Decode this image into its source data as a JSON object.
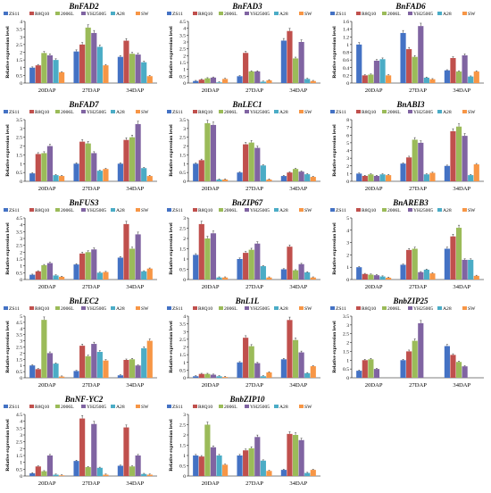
{
  "legend_entries": [
    "ZS11",
    "R8Q10",
    "2006L",
    "YH25005",
    "A28",
    "SW"
  ],
  "series_colors": [
    "#4472C4",
    "#C0504D",
    "#9BBB59",
    "#8064A2",
    "#4BACC6",
    "#F79646"
  ],
  "ylabel": "Relative expression level",
  "categories": [
    "20DAP",
    "27DAP",
    "34DAP"
  ],
  "chart_data": [
    {
      "type": "bar",
      "title": "BnFAD2",
      "categories": [
        "20DAP",
        "27DAP",
        "34DAP"
      ],
      "ylim": [
        0,
        4
      ],
      "yticks": [
        "0",
        "0.5",
        "1",
        "1.5",
        "2",
        "2.5",
        "3",
        "3.5",
        "4"
      ],
      "ylabel": "Relative expression level",
      "series": [
        {
          "name": "ZS11",
          "values": [
            1.0,
            2.05,
            1.7
          ]
        },
        {
          "name": "R8Q10",
          "values": [
            1.15,
            2.5,
            2.75
          ]
        },
        {
          "name": "2006L",
          "values": [
            1.95,
            3.6,
            1.9
          ]
        },
        {
          "name": "YH25005",
          "values": [
            1.8,
            3.25,
            1.85
          ]
        },
        {
          "name": "A28",
          "values": [
            1.5,
            2.35,
            1.35
          ]
        },
        {
          "name": "SW",
          "values": [
            0.7,
            1.15,
            0.45
          ]
        }
      ]
    },
    {
      "type": "bar",
      "title": "BnFAD3",
      "categories": [
        "20DAP",
        "27DAP",
        "34DAP"
      ],
      "ylim": [
        0,
        4.5
      ],
      "yticks": [
        "0",
        "0.5",
        "1",
        "1.5",
        "2",
        "2.5",
        "3",
        "3.5",
        "4",
        "4.5"
      ],
      "ylabel": "Relative expression level",
      "series": [
        {
          "name": "ZS11",
          "values": [
            0.15,
            0.5,
            3.1
          ]
        },
        {
          "name": "R8Q10",
          "values": [
            0.25,
            2.2,
            3.8
          ]
        },
        {
          "name": "2006L",
          "values": [
            0.35,
            0.85,
            1.8
          ]
        },
        {
          "name": "YH25005",
          "values": [
            0.4,
            0.85,
            3.0
          ]
        },
        {
          "name": "A28",
          "values": [
            0.05,
            0.1,
            0.3
          ]
        },
        {
          "name": "SW",
          "values": [
            0.3,
            0.2,
            0.15
          ]
        }
      ]
    },
    {
      "type": "bar",
      "title": "BnFAD6",
      "categories": [
        "20DAP",
        "27DAP",
        "34DAP"
      ],
      "ylim": [
        0,
        1.6
      ],
      "yticks": [
        "0",
        "0.2",
        "0.4",
        "0.6",
        "0.8",
        "1",
        "1.2",
        "1.4",
        "1.6"
      ],
      "ylabel": "Relative expression level",
      "series": [
        {
          "name": "ZS11",
          "values": [
            1.0,
            1.3,
            0.33
          ]
        },
        {
          "name": "R8Q10",
          "values": [
            0.2,
            0.88,
            0.65
          ]
        },
        {
          "name": "2006L",
          "values": [
            0.22,
            0.68,
            0.3
          ]
        },
        {
          "name": "YH25005",
          "values": [
            0.58,
            1.48,
            0.72
          ]
        },
        {
          "name": "A28",
          "values": [
            0.62,
            0.14,
            0.17
          ]
        },
        {
          "name": "SW",
          "values": [
            0.2,
            0.1,
            0.3
          ]
        }
      ]
    },
    {
      "type": "bar",
      "title": "BnFAD7",
      "categories": [
        "20DAP",
        "27DAP",
        "34DAP"
      ],
      "ylim": [
        0,
        3.5
      ],
      "yticks": [
        "0",
        "0.5",
        "1",
        "1.5",
        "2",
        "2.5",
        "3",
        "3.5"
      ],
      "ylabel": "Relative expression level",
      "series": [
        {
          "name": "ZS11",
          "values": [
            0.45,
            1.0,
            1.0
          ]
        },
        {
          "name": "R8Q10",
          "values": [
            1.55,
            2.25,
            2.35
          ]
        },
        {
          "name": "2006L",
          "values": [
            1.6,
            2.15,
            2.5
          ]
        },
        {
          "name": "YH25005",
          "values": [
            2.0,
            1.6,
            3.25
          ]
        },
        {
          "name": "A28",
          "values": [
            0.35,
            0.6,
            0.75
          ]
        },
        {
          "name": "SW",
          "values": [
            0.3,
            0.7,
            0.3
          ]
        }
      ]
    },
    {
      "type": "bar",
      "title": "BnLEC1",
      "categories": [
        "20DAP",
        "27DAP",
        "34DAP"
      ],
      "ylim": [
        0,
        3.5
      ],
      "yticks": [
        "0",
        "0.5",
        "1",
        "1.5",
        "2",
        "2.5",
        "3",
        "3.5"
      ],
      "ylabel": "Relative expression level",
      "series": [
        {
          "name": "ZS11",
          "values": [
            1.0,
            0.5,
            0.3
          ]
        },
        {
          "name": "R8Q10",
          "values": [
            1.2,
            2.1,
            0.5
          ]
        },
        {
          "name": "2006L",
          "values": [
            3.3,
            2.2,
            0.7
          ]
        },
        {
          "name": "YH25005",
          "values": [
            3.2,
            1.9,
            0.55
          ]
        },
        {
          "name": "A28",
          "values": [
            0.1,
            0.9,
            0.4
          ]
        },
        {
          "name": "SW",
          "values": [
            0.1,
            0.1,
            0.25
          ]
        }
      ]
    },
    {
      "type": "bar",
      "title": "BnABI3",
      "categories": [
        "20DAP",
        "27DAP",
        "34DAP"
      ],
      "ylim": [
        0,
        8
      ],
      "yticks": [
        "0",
        "1",
        "2",
        "3",
        "4",
        "5",
        "6",
        "7",
        "8"
      ],
      "ylabel": "Relative expression level",
      "series": [
        {
          "name": "ZS11",
          "values": [
            1.0,
            2.3,
            2.0
          ]
        },
        {
          "name": "R8Q10",
          "values": [
            0.7,
            3.1,
            6.5
          ]
        },
        {
          "name": "2006L",
          "values": [
            0.9,
            5.4,
            7.1
          ]
        },
        {
          "name": "YH25005",
          "values": [
            0.7,
            5.0,
            5.9
          ]
        },
        {
          "name": "A28",
          "values": [
            0.9,
            0.9,
            0.8
          ]
        },
        {
          "name": "SW",
          "values": [
            0.8,
            1.1,
            2.2
          ]
        }
      ]
    },
    {
      "type": "bar",
      "title": "BnFUS3",
      "categories": [
        "20DAP",
        "27DAP",
        "34DAP"
      ],
      "ylim": [
        0,
        4.5
      ],
      "yticks": [
        "0",
        "0.5",
        "1",
        "1.5",
        "2",
        "2.5",
        "3",
        "3.5",
        "4",
        "4.5"
      ],
      "ylabel": "Relative expression level",
      "series": [
        {
          "name": "ZS11",
          "values": [
            0.35,
            1.1,
            1.6
          ]
        },
        {
          "name": "R8Q10",
          "values": [
            0.6,
            1.9,
            4.05
          ]
        },
        {
          "name": "2006L",
          "values": [
            1.05,
            2.0,
            2.25
          ]
        },
        {
          "name": "YH25005",
          "values": [
            1.2,
            2.2,
            3.3
          ]
        },
        {
          "name": "A28",
          "values": [
            0.3,
            0.5,
            0.6
          ]
        },
        {
          "name": "SW",
          "values": [
            0.2,
            0.55,
            0.8
          ]
        }
      ]
    },
    {
      "type": "bar",
      "title": "BnZIP67",
      "categories": [
        "20DAP",
        "27DAP",
        "34DAP"
      ],
      "ylim": [
        0,
        3
      ],
      "yticks": [
        "0",
        "0.5",
        "1",
        "1.5",
        "2",
        "2.5",
        "3"
      ],
      "ylabel": "Relative expression level",
      "series": [
        {
          "name": "ZS11",
          "values": [
            1.2,
            1.0,
            0.5
          ]
        },
        {
          "name": "R8Q10",
          "values": [
            2.7,
            1.3,
            1.6
          ]
        },
        {
          "name": "2006L",
          "values": [
            2.0,
            1.45,
            0.45
          ]
        },
        {
          "name": "YH25005",
          "values": [
            2.25,
            1.75,
            0.75
          ]
        },
        {
          "name": "A28",
          "values": [
            0.1,
            0.65,
            0.35
          ]
        },
        {
          "name": "SW",
          "values": [
            0.1,
            0.1,
            0.1
          ]
        }
      ]
    },
    {
      "type": "bar",
      "title": "BnAREB3",
      "categories": [
        "20DAP",
        "27DAP",
        "34DAP"
      ],
      "ylim": [
        0,
        5
      ],
      "yticks": [
        "0",
        "1",
        "2",
        "3",
        "4",
        "5"
      ],
      "ylabel": "Relative expression level",
      "series": [
        {
          "name": "ZS11",
          "values": [
            1.0,
            1.2,
            2.5
          ]
        },
        {
          "name": "R8Q10",
          "values": [
            0.45,
            2.4,
            3.5
          ]
        },
        {
          "name": "2006L",
          "values": [
            0.4,
            2.5,
            4.2
          ]
        },
        {
          "name": "YH25005",
          "values": [
            0.35,
            0.6,
            1.6
          ]
        },
        {
          "name": "A28",
          "values": [
            0.25,
            0.8,
            1.6
          ]
        },
        {
          "name": "SW",
          "values": [
            0.15,
            0.5,
            0.3
          ]
        }
      ]
    },
    {
      "type": "bar",
      "title": "BnLEC2",
      "categories": [
        "20DAP",
        "27DAP",
        "34DAP"
      ],
      "ylim": [
        0,
        5
      ],
      "yticks": [
        "0",
        "0.5",
        "1",
        "1.5",
        "2",
        "2.5",
        "3",
        "3.5",
        "4",
        "4.5",
        "5"
      ],
      "ylabel": "Relative expression level",
      "series": [
        {
          "name": "ZS11",
          "values": [
            1.0,
            0.55,
            0.2
          ]
        },
        {
          "name": "R8Q10",
          "values": [
            0.7,
            2.6,
            1.45
          ]
        },
        {
          "name": "2006L",
          "values": [
            4.7,
            1.75,
            1.5
          ]
        },
        {
          "name": "YH25005",
          "values": [
            2.0,
            2.75,
            1.0
          ]
        },
        {
          "name": "A28",
          "values": [
            1.15,
            2.1,
            2.4
          ]
        },
        {
          "name": "SW",
          "values": [
            0.1,
            1.4,
            3.0
          ]
        }
      ]
    },
    {
      "type": "bar",
      "title": "BnL1L",
      "categories": [
        "20DAP",
        "27DAP",
        "34DAP"
      ],
      "ylim": [
        0,
        4
      ],
      "yticks": [
        "0",
        "0.5",
        "1",
        "1.5",
        "2",
        "2.5",
        "3",
        "3.5",
        "4"
      ],
      "ylabel": "Relative expression level",
      "series": [
        {
          "name": "ZS11",
          "values": [
            0.1,
            1.0,
            1.2
          ]
        },
        {
          "name": "R8Q10",
          "values": [
            0.25,
            2.6,
            3.75
          ]
        },
        {
          "name": "2006L",
          "values": [
            0.25,
            2.05,
            2.45
          ]
        },
        {
          "name": "YH25005",
          "values": [
            0.2,
            0.95,
            1.65
          ]
        },
        {
          "name": "A28",
          "values": [
            0.1,
            0.1,
            0.3
          ]
        },
        {
          "name": "SW",
          "values": [
            0.05,
            0.35,
            0.75
          ]
        }
      ]
    },
    {
      "type": "bar",
      "title": "BnbZIP25",
      "categories": [
        "20DAP",
        "27DAP",
        "34DAP"
      ],
      "ylim": [
        0,
        3.5
      ],
      "yticks": [
        "0",
        "0.5",
        "1",
        "1.5",
        "2",
        "2.5",
        "3",
        "3.5"
      ],
      "ylabel": "Relative expression level",
      "series": [
        {
          "name": "ZS11",
          "values": [
            0.4,
            1.0,
            1.8
          ]
        },
        {
          "name": "R8Q10",
          "values": [
            1.0,
            1.5,
            1.3
          ]
        },
        {
          "name": "2006L",
          "values": [
            1.05,
            2.1,
            0.9
          ]
        },
        {
          "name": "YH25005",
          "values": [
            0.5,
            3.1,
            0.65
          ]
        },
        {
          "name": "A28",
          "values": [
            0,
            0,
            0
          ]
        },
        {
          "name": "SW",
          "values": [
            0,
            0,
            0
          ]
        }
      ]
    },
    {
      "type": "bar",
      "title": "BnNF-YC2",
      "categories": [
        "20DAP",
        "27DAP",
        "34DAP"
      ],
      "ylim": [
        0,
        4.5
      ],
      "yticks": [
        "0",
        "0.5",
        "1",
        "1.5",
        "2",
        "2.5",
        "3",
        "3.5",
        "4",
        "4.5"
      ],
      "ylabel": "Relative expression level",
      "series": [
        {
          "name": "ZS11",
          "values": [
            0.2,
            1.1,
            0.75
          ]
        },
        {
          "name": "R8Q10",
          "values": [
            0.7,
            4.2,
            3.55
          ]
        },
        {
          "name": "2006L",
          "values": [
            0.35,
            0.65,
            0.7
          ]
        },
        {
          "name": "YH25005",
          "values": [
            1.5,
            3.8,
            1.5
          ]
        },
        {
          "name": "A28",
          "values": [
            0.1,
            0.6,
            0.15
          ]
        },
        {
          "name": "SW",
          "values": [
            0.05,
            0.1,
            0.1
          ]
        }
      ]
    },
    {
      "type": "bar",
      "title": "BnbZIP10",
      "categories": [
        "20DAP",
        "27DAP",
        "34DAP"
      ],
      "ylim": [
        0,
        3
      ],
      "yticks": [
        "0",
        "0.5",
        "1",
        "1.5",
        "2",
        "2.5",
        "3"
      ],
      "ylabel": "Relative expression level",
      "series": [
        {
          "name": "ZS11",
          "values": [
            1.0,
            1.0,
            0.3
          ]
        },
        {
          "name": "R8Q10",
          "values": [
            0.95,
            1.25,
            2.05
          ]
        },
        {
          "name": "2006L",
          "values": [
            2.5,
            1.35,
            2.0
          ]
        },
        {
          "name": "YH25005",
          "values": [
            1.4,
            1.9,
            1.75
          ]
        },
        {
          "name": "A28",
          "values": [
            1.0,
            0.75,
            0.15
          ]
        },
        {
          "name": "SW",
          "values": [
            0.55,
            0.25,
            0.3
          ]
        }
      ]
    }
  ]
}
